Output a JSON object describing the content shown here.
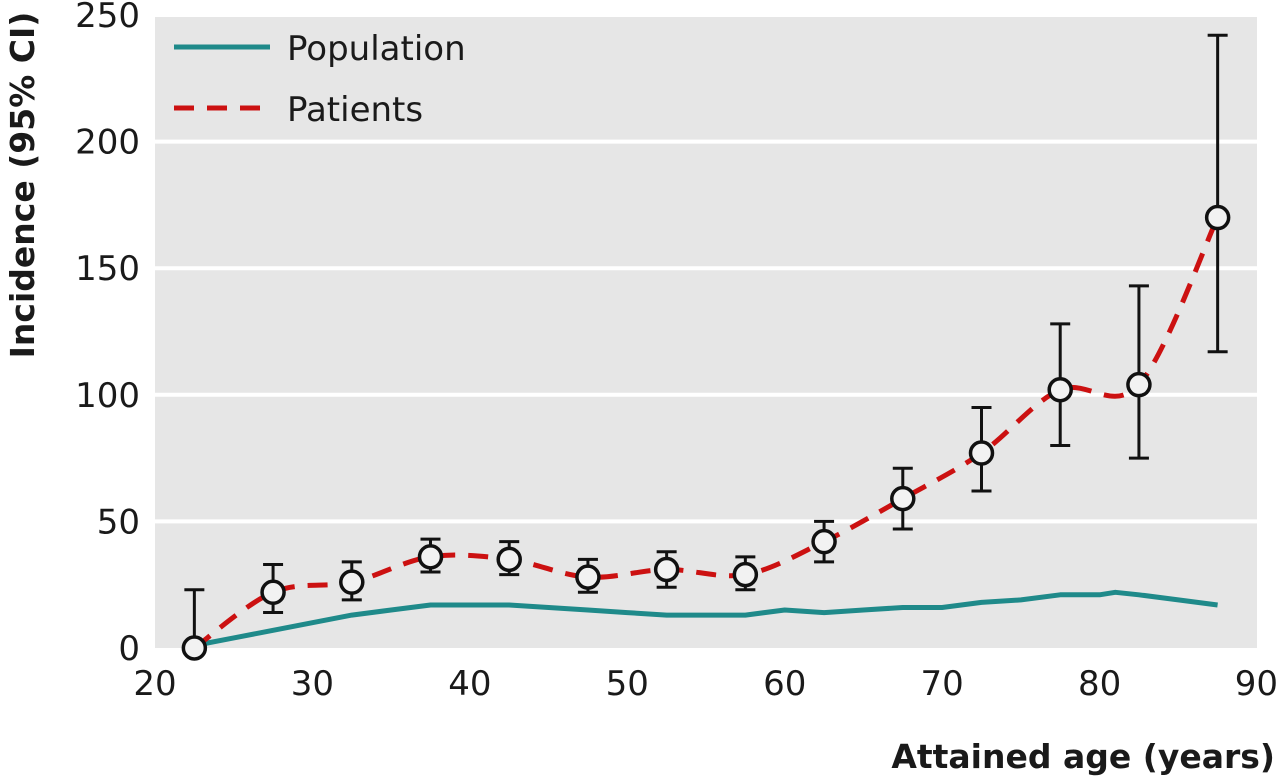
{
  "chart_data": {
    "type": "line",
    "title": "",
    "xlabel": "Attained age (years)",
    "ylabel": "Incidence (95% CI)",
    "xlim": [
      20,
      90
    ],
    "ylim": [
      0,
      250
    ],
    "xticks": [
      20,
      30,
      40,
      50,
      60,
      70,
      80,
      90
    ],
    "yticks": [
      0,
      50,
      100,
      150,
      200,
      250
    ],
    "xtick_labels": [
      "20",
      "30",
      "40",
      "50",
      "60",
      "70",
      "80",
      "90"
    ],
    "ytick_labels": [
      "0",
      "50",
      "100",
      "150",
      "200",
      "250"
    ],
    "grid": "horizontal",
    "legend_position": "top-left",
    "background": "#e6e6e6",
    "series": [
      {
        "name": "Population",
        "style": "solid",
        "color": "#1f8a8a",
        "x": [
          22.5,
          25,
          27.5,
          30,
          32.5,
          35,
          37.5,
          40,
          42.5,
          45,
          47.5,
          50,
          52.5,
          55,
          57.5,
          60,
          62.5,
          65,
          67.5,
          70,
          72.5,
          75,
          77.5,
          80,
          81,
          82.5,
          85,
          87.5
        ],
        "y": [
          1,
          4,
          7,
          10,
          13,
          15,
          17,
          17,
          17,
          16,
          15,
          14,
          13,
          13,
          13,
          15,
          14,
          15,
          16,
          16,
          18,
          19,
          21,
          21,
          22,
          21,
          19,
          17
        ]
      },
      {
        "name": "Patients",
        "style": "dashed",
        "color": "#cc1111",
        "x": [
          22.5,
          27.5,
          32.5,
          37.5,
          42.5,
          47.5,
          52.5,
          57.5,
          62.5,
          67.5,
          72.5,
          77.5,
          82.5,
          87.5
        ],
        "y": [
          0,
          22,
          26,
          36,
          35,
          28,
          31,
          29,
          42,
          59,
          77,
          102,
          104,
          170
        ],
        "ci_low": [
          0,
          14,
          19,
          30,
          29,
          22,
          24,
          23,
          34,
          47,
          62,
          80,
          75,
          117
        ],
        "ci_high": [
          23,
          33,
          34,
          43,
          42,
          35,
          38,
          36,
          50,
          71,
          95,
          128,
          143,
          242
        ]
      }
    ]
  }
}
